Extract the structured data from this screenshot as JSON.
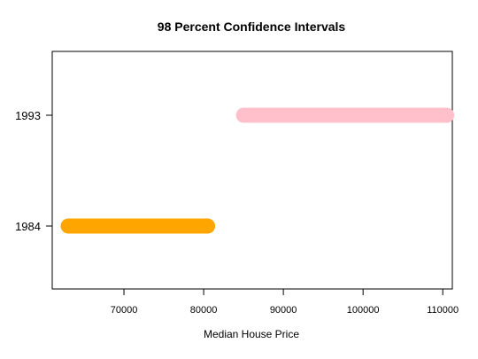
{
  "chart_data": {
    "type": "range-bar",
    "title": "98 Percent Confidence Intervals",
    "xlabel": "Median House Price",
    "ylabel": "",
    "xlim": [
      61000,
      111200
    ],
    "x_ticks": [
      70000,
      80000,
      90000,
      100000,
      110000
    ],
    "x_tick_labels": [
      "70000",
      "80000",
      "90000",
      "100000",
      "110000"
    ],
    "categories": [
      "1984",
      "1993"
    ],
    "intervals": [
      {
        "category": "1984",
        "low": 63000,
        "high": 80500,
        "color": "#FFA500"
      },
      {
        "category": "1993",
        "low": 85000,
        "high": 110500,
        "color": "#FFC0CB"
      }
    ],
    "grid": false,
    "legend": "none"
  }
}
